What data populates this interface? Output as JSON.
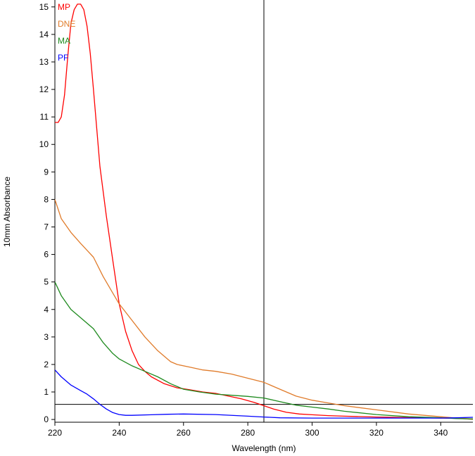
{
  "chart_data": {
    "type": "line",
    "xlabel": "Wavelength (nm)",
    "ylabel": "10mm Absorbance",
    "xlim": [
      220,
      350
    ],
    "ylim": [
      -0.1,
      15.2
    ],
    "xticks": [
      "220",
      "240",
      "260",
      "280",
      "300",
      "320",
      "340"
    ],
    "yticks": [
      "0",
      "1",
      "2",
      "3",
      "4",
      "5",
      "6",
      "7",
      "8",
      "9",
      "10",
      "11",
      "12",
      "13",
      "14",
      "15"
    ],
    "grid": false,
    "legend_position": "top-left",
    "crosshair": {
      "x": 285,
      "y": 0.55
    },
    "series": [
      {
        "name": "MP",
        "color": "#ff0000",
        "x": [
          220,
          221,
          222,
          223,
          224,
          225,
          226,
          227,
          228,
          229,
          230,
          231,
          232,
          233,
          234,
          236,
          238,
          240,
          242,
          244,
          246,
          248,
          250,
          254,
          258,
          262,
          266,
          270,
          274,
          278,
          282,
          285,
          288,
          292,
          296,
          300,
          305,
          310,
          320,
          330,
          340,
          345,
          350
        ],
        "y": [
          10.8,
          10.8,
          11.0,
          11.8,
          13.2,
          14.4,
          14.9,
          15.1,
          15.1,
          14.9,
          14.3,
          13.3,
          12.0,
          10.6,
          9.2,
          7.4,
          5.8,
          4.2,
          3.2,
          2.5,
          2.0,
          1.75,
          1.55,
          1.3,
          1.15,
          1.08,
          1.0,
          0.95,
          0.85,
          0.75,
          0.62,
          0.5,
          0.38,
          0.26,
          0.2,
          0.17,
          0.14,
          0.12,
          0.09,
          0.07,
          0.05,
          0.04,
          0.02
        ]
      },
      {
        "name": "DNE",
        "color": "#e07b2a",
        "x": [
          220,
          222,
          225,
          228,
          232,
          235,
          238,
          240,
          244,
          248,
          252,
          256,
          258,
          262,
          266,
          270,
          275,
          280,
          285,
          290,
          295,
          300,
          305,
          310,
          320,
          330,
          340,
          345,
          350
        ],
        "y": [
          8.0,
          7.3,
          6.8,
          6.4,
          5.9,
          5.2,
          4.6,
          4.2,
          3.6,
          3.0,
          2.5,
          2.1,
          2.0,
          1.9,
          1.8,
          1.75,
          1.65,
          1.5,
          1.35,
          1.1,
          0.85,
          0.7,
          0.6,
          0.5,
          0.35,
          0.2,
          0.1,
          0.05,
          0.0
        ]
      },
      {
        "name": "MA",
        "color": "#1e8a1e",
        "x": [
          220,
          222,
          225,
          228,
          232,
          235,
          238,
          240,
          244,
          248,
          252,
          256,
          260,
          265,
          270,
          275,
          280,
          285,
          290,
          295,
          300,
          305,
          310,
          320,
          330,
          340,
          345,
          350
        ],
        "y": [
          5.0,
          4.5,
          4.0,
          3.7,
          3.3,
          2.8,
          2.4,
          2.2,
          1.95,
          1.75,
          1.55,
          1.3,
          1.1,
          1.0,
          0.92,
          0.88,
          0.84,
          0.78,
          0.65,
          0.52,
          0.45,
          0.38,
          0.3,
          0.18,
          0.1,
          0.06,
          0.03,
          0.02
        ]
      },
      {
        "name": "PF",
        "color": "#0000ff",
        "x": [
          220,
          222,
          225,
          228,
          230,
          232,
          234,
          236,
          238,
          240,
          242,
          244,
          250,
          255,
          260,
          270,
          280,
          285,
          290,
          300,
          310,
          320,
          330,
          340,
          345,
          350
        ],
        "y": [
          1.8,
          1.55,
          1.25,
          1.05,
          0.92,
          0.75,
          0.55,
          0.38,
          0.25,
          0.18,
          0.15,
          0.15,
          0.17,
          0.19,
          0.2,
          0.18,
          0.12,
          0.09,
          0.06,
          0.05,
          0.05,
          0.05,
          0.05,
          0.05,
          0.06,
          0.08
        ]
      }
    ]
  }
}
